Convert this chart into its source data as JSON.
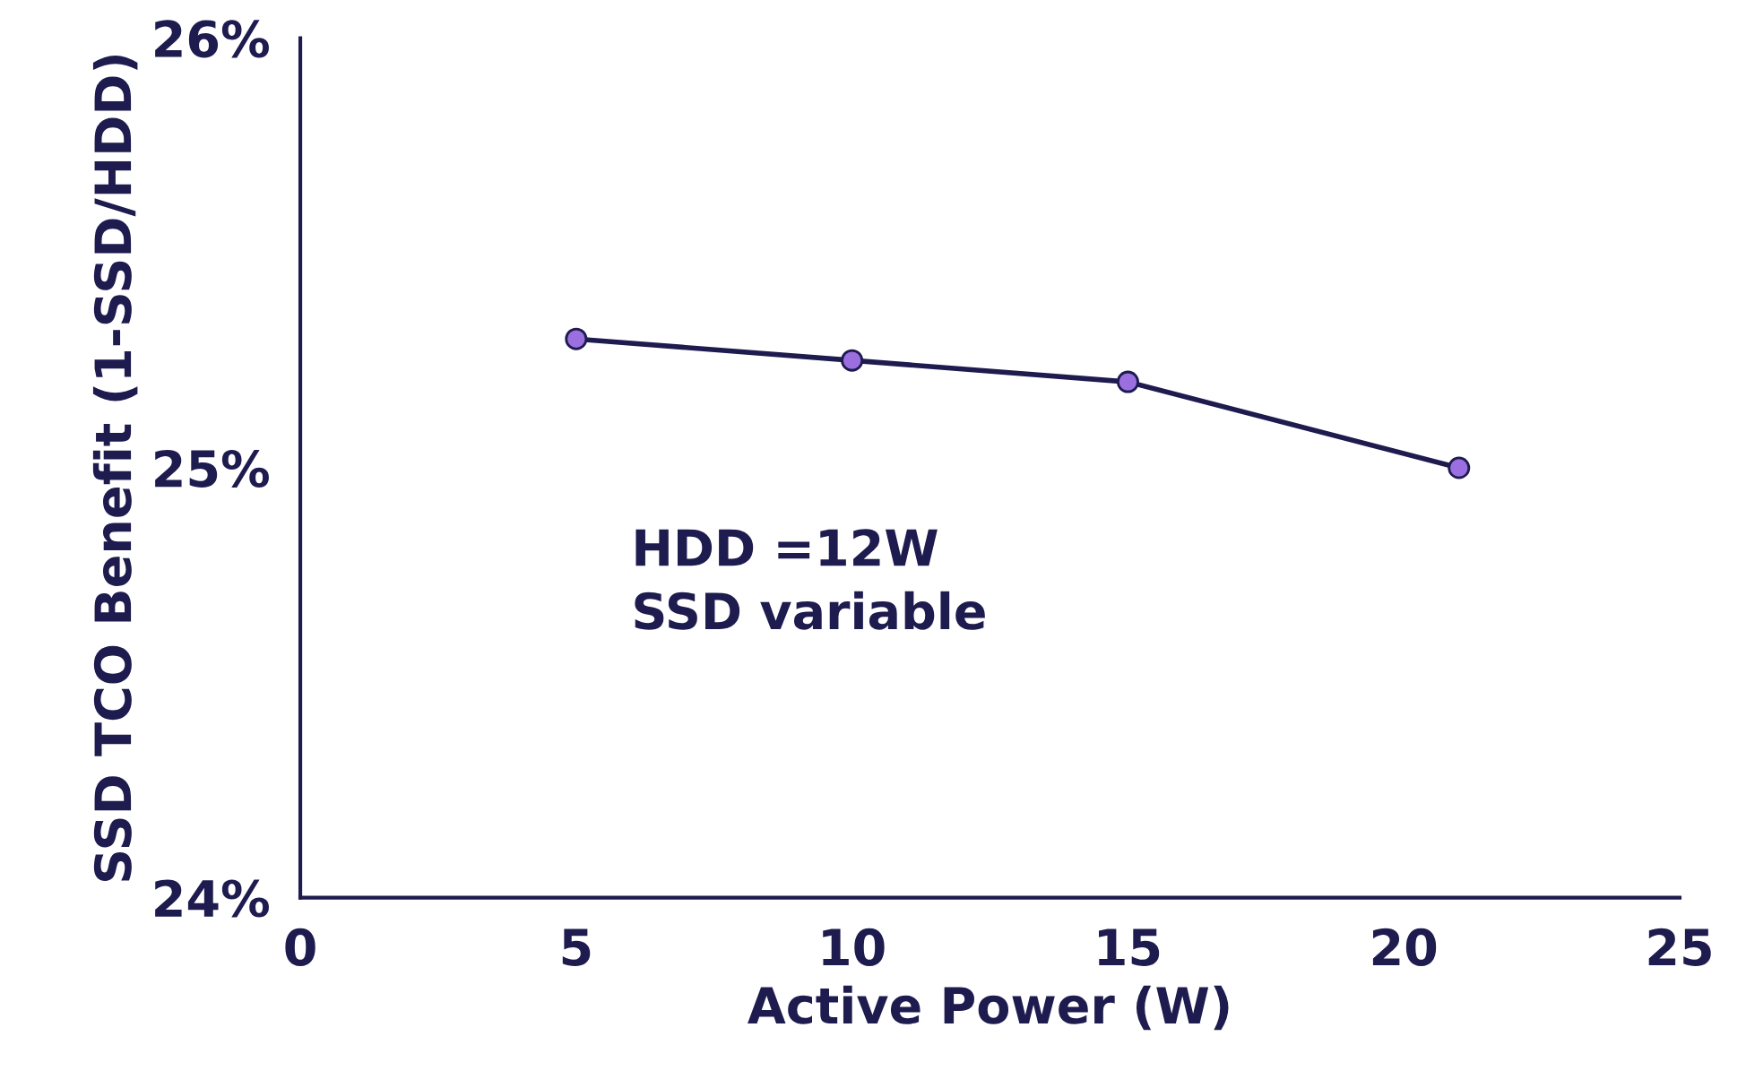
{
  "chart_data": {
    "type": "line",
    "xlabel": "Active Power (W)",
    "ylabel": "SSD TCO Benefit (1-SSD/HDD)",
    "x": [
      5,
      10,
      15,
      21
    ],
    "series": [
      {
        "color": "#1e1b4f",
        "values": [
          25.3,
          25.25,
          25.2,
          25.0
        ]
      }
    ],
    "marker": "circle",
    "line_style": "solid",
    "grid": false,
    "legend": false,
    "xlim": [
      0,
      25
    ],
    "xticks": [
      0,
      5,
      10,
      15,
      20,
      25
    ],
    "ylim": [
      24,
      26
    ],
    "yticks": [
      {
        "value": 24,
        "label": "24%"
      },
      {
        "value": 25,
        "label": "25%"
      },
      {
        "value": 26,
        "label": "26%"
      }
    ],
    "annotations": [
      "HDD =12W\nSSD variable"
    ]
  }
}
